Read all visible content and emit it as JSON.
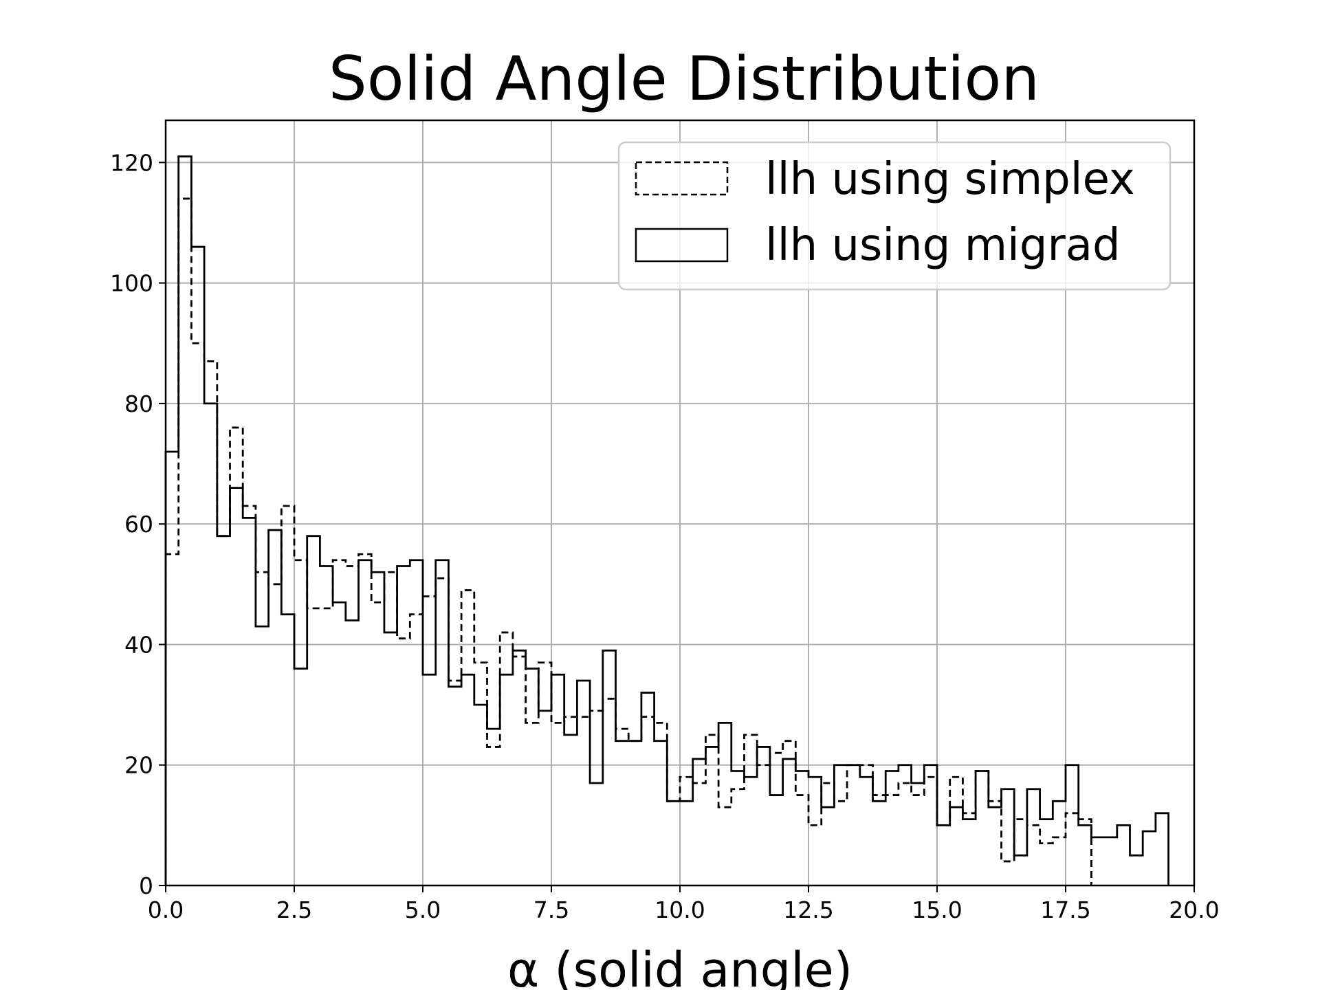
{
  "chart_data": {
    "type": "histogram",
    "title": "Solid Angle Distribution",
    "xlabel": "α (solid angle)",
    "ylabel": "",
    "xlim": [
      0,
      20
    ],
    "ylim": [
      0,
      127
    ],
    "xticks": [
      "0.0",
      "2.5",
      "5.0",
      "7.5",
      "10.0",
      "12.5",
      "15.0",
      "17.5",
      "20.0"
    ],
    "yticks": [
      "0",
      "20",
      "40",
      "60",
      "80",
      "100",
      "120"
    ],
    "grid": true,
    "legend_position": "top-right",
    "bin_width": 0.25,
    "series": [
      {
        "name": "llh using simplex",
        "line_style": "dashed",
        "values": [
          55,
          114,
          90,
          87,
          58,
          76,
          63,
          52,
          50,
          63,
          54,
          46,
          46,
          54,
          53,
          55,
          47,
          52,
          41,
          45,
          48,
          51,
          34,
          49,
          37,
          23,
          42,
          38,
          27,
          37,
          27,
          28,
          28,
          29,
          31,
          26,
          24,
          28,
          27,
          14,
          18,
          17,
          25,
          13,
          16,
          25,
          20,
          22,
          24,
          15,
          10,
          17,
          14,
          20,
          20,
          15,
          15,
          17,
          15,
          18,
          10,
          18,
          12,
          19,
          14,
          4,
          11,
          10,
          7,
          8,
          12,
          11
        ]
      },
      {
        "name": "llh using migrad",
        "line_style": "solid",
        "values": [
          72,
          121,
          106,
          80,
          58,
          66,
          61,
          43,
          59,
          45,
          36,
          58,
          53,
          47,
          44,
          54,
          52,
          42,
          53,
          54,
          35,
          54,
          33,
          35,
          30,
          26,
          35,
          39,
          36,
          29,
          35,
          25,
          34,
          17,
          39,
          24,
          24,
          32,
          24,
          14,
          14,
          21,
          23,
          27,
          19,
          18,
          23,
          15,
          21,
          19,
          18,
          13,
          20,
          20,
          18,
          14,
          19,
          20,
          17,
          20,
          10,
          13,
          11,
          19,
          13,
          16,
          5,
          16,
          11,
          14,
          20,
          10,
          8,
          8,
          10,
          5,
          9,
          12
        ]
      }
    ]
  }
}
